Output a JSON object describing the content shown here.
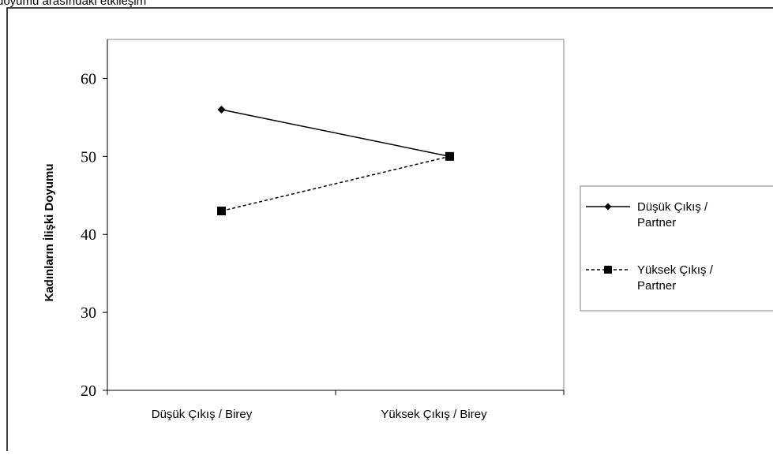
{
  "header_fragment": "doyumu arasındaki etkileşim",
  "chart_data": {
    "type": "line",
    "title": "",
    "xlabel": "",
    "ylabel": "Kadınların İlişki Doyumu",
    "categories": [
      "Düşük Çıkış /  Birey",
      "Yüksek Çıkış / Birey"
    ],
    "ylim": [
      20,
      65
    ],
    "yticks": [
      20,
      30,
      40,
      50,
      60
    ],
    "grid": false,
    "legend_position": "right",
    "series": [
      {
        "name_lines": [
          "Düşük Çıkış /",
          "Partner"
        ],
        "values": [
          56,
          50
        ],
        "marker": "diamond",
        "line_style": "solid",
        "color": "#000000"
      },
      {
        "name_lines": [
          "Yüksek Çıkış /",
          "Partner"
        ],
        "values": [
          43,
          50
        ],
        "marker": "square",
        "line_style": "dashed",
        "color": "#000000"
      }
    ]
  }
}
